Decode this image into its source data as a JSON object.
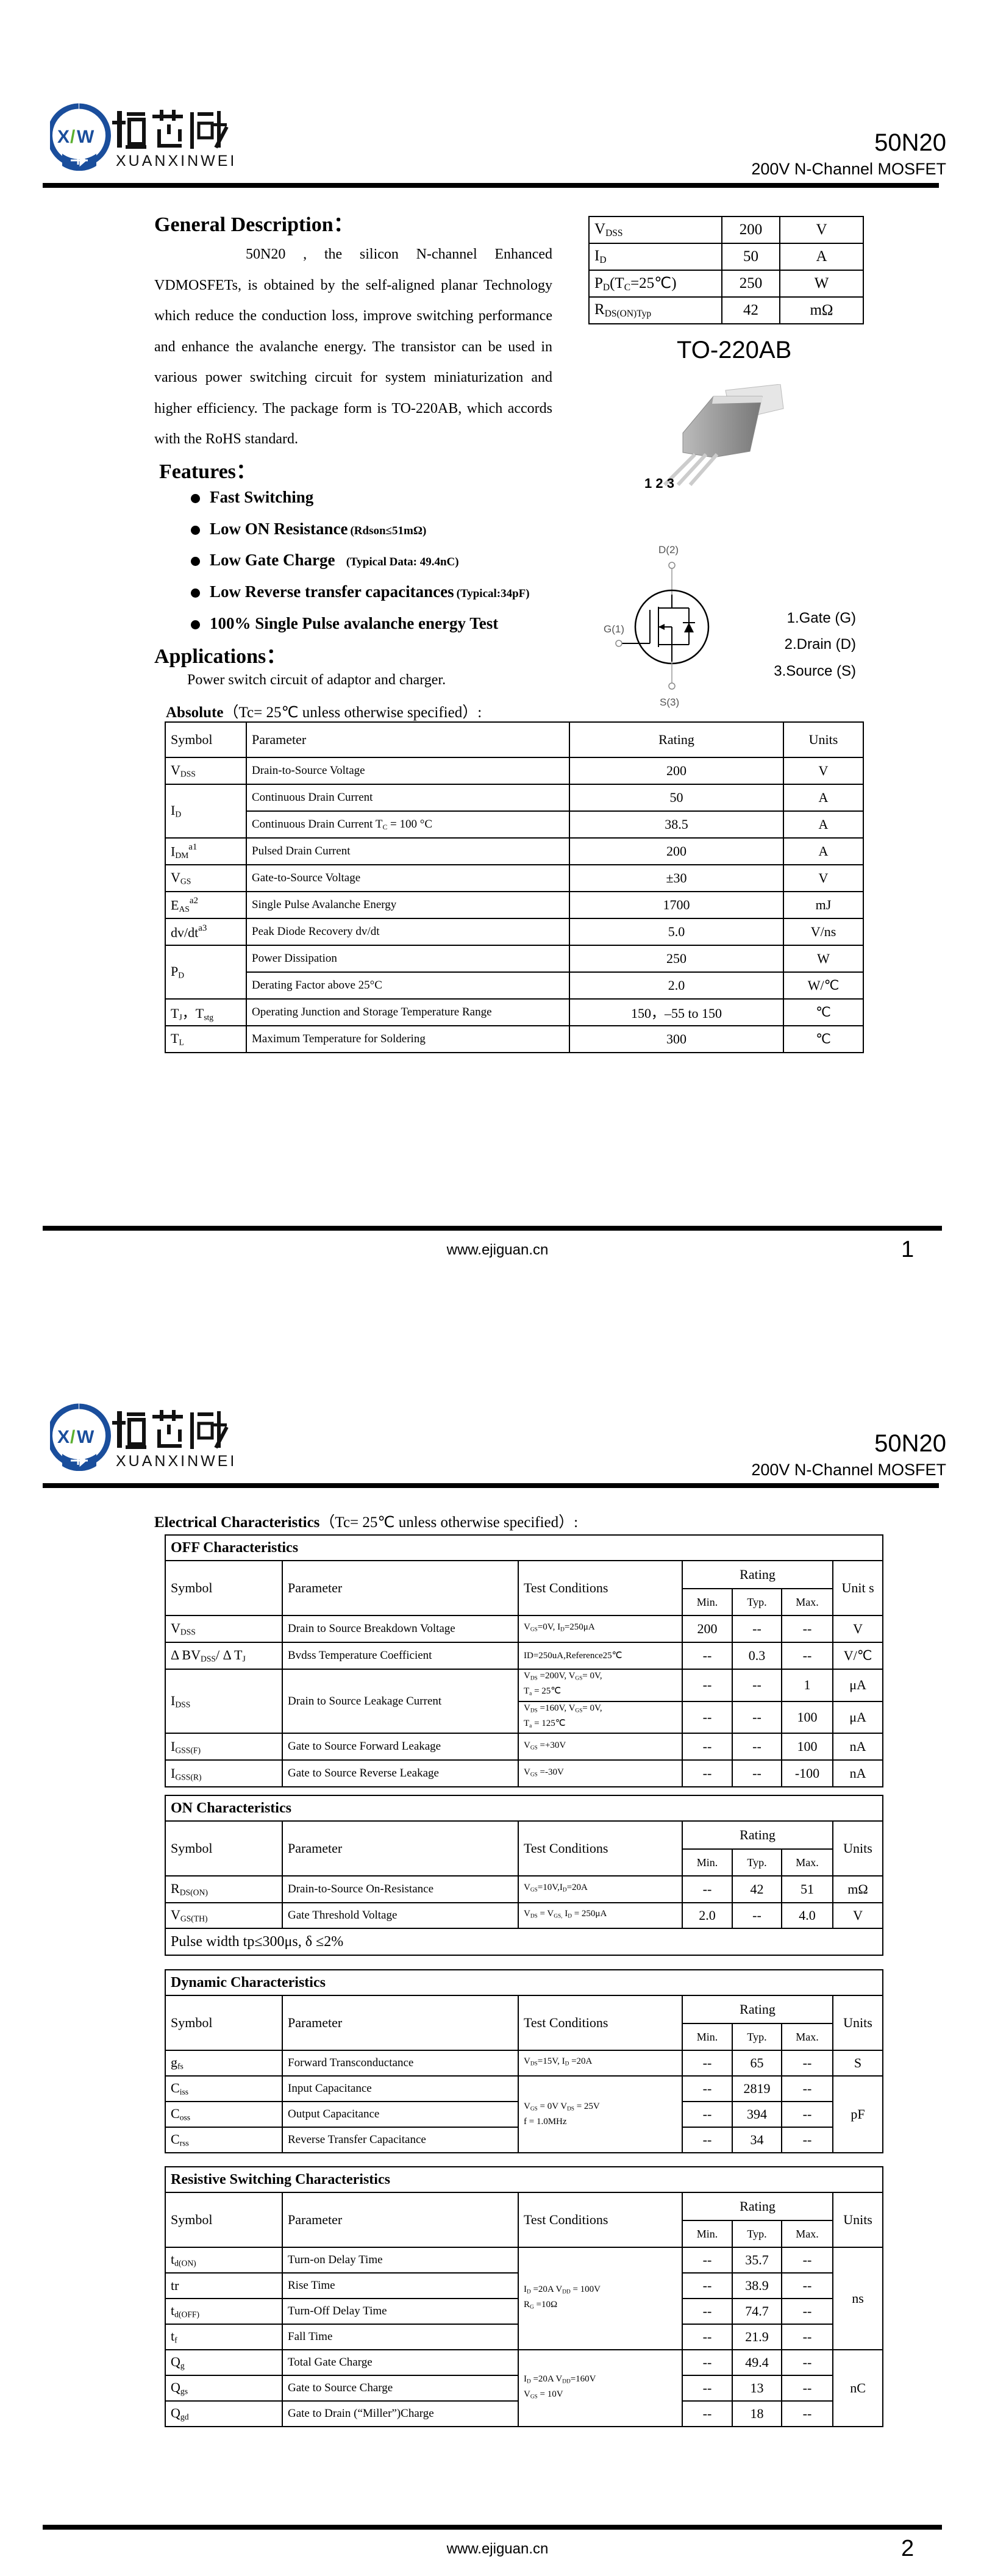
{
  "header": {
    "logo_text": "烜芯微",
    "logo_pinyin": "XUANXINWEI",
    "logo_mark": "XW",
    "part": "50N20",
    "subtitle": "200V N-Channel MOSFET",
    "brand_color": "#1a4e9c",
    "logo_accent": "#5bb030"
  },
  "page1": {
    "general_heading": "General Description：",
    "general_text": "50N20 , the silicon N-channel Enhanced VDMOSFETs, is obtained by the self-aligned planar Technology which reduce the conduction loss, improve switching performance and enhance the avalanche energy. The transistor can be used in various power switching circuit for system miniaturization and higher efficiency. The package form is TO-220AB, which accords with the RoHS standard.",
    "summary": [
      [
        [
          "V",
          {
            "sub": "DSS"
          }
        ],
        "200",
        "V"
      ],
      [
        [
          "I",
          {
            "sub": "D"
          }
        ],
        "50",
        "A"
      ],
      [
        [
          "P",
          {
            "sub": "D"
          },
          "(T",
          {
            "sub": "C"
          },
          "=25℃)"
        ],
        "250",
        "W"
      ],
      [
        [
          "R",
          {
            "sub": "DS(ON)Typ"
          }
        ],
        "42",
        "mΩ"
      ]
    ],
    "package": "TO-220AB",
    "pin_numbers": "1 2 3",
    "features_heading": "Features：",
    "features": [
      {
        "main": "Fast Switching",
        "note": ""
      },
      {
        "main": "Low ON Resistance",
        "note": "(Rdson≤51mΩ)"
      },
      {
        "main": "Low Gate Charge",
        "note": "   (Typical Data: 49.4nC)"
      },
      {
        "main": "Low Reverse transfer capacitances",
        "note": "(Typical:34pF)"
      },
      {
        "main": "100% Single Pulse avalanche energy Test",
        "note": ""
      }
    ],
    "applications_heading": "Applications：",
    "applications_text": "Power switch circuit of adaptor and charger.",
    "schematic": {
      "drain": "D(2)",
      "gate": "G(1)",
      "source": "S(3)"
    },
    "pins": [
      "1.Gate (G)",
      "2.Drain (D)",
      "3.Source (S)"
    ],
    "absolute_heading": "Absolute",
    "absolute_condition": "（Tc= 25℃  unless otherwise specified）:",
    "absolute_headers": [
      "Symbol",
      "Parameter",
      "Rating",
      "Units"
    ],
    "absolute_rows": [
      [
        [
          "V",
          {
            "sub": "DSS"
          }
        ],
        "Drain-to-Source Voltage",
        "200",
        "V"
      ],
      [
        {
          "v": [
            "I",
            {
              "sub": "D"
            }
          ],
          "rs": 2
        },
        "Continuous Drain Current",
        "50",
        "A"
      ],
      [
        [
          "Continuous Drain Current T",
          {
            "sub": "C"
          },
          " = 100 °C"
        ],
        "38.5",
        "A"
      ],
      [
        [
          "I",
          {
            "sub": "DM"
          },
          {
            "sup": "a1"
          }
        ],
        "Pulsed Drain Current",
        "200",
        "A"
      ],
      [
        [
          "V",
          {
            "sub": "GS"
          }
        ],
        "Gate-to-Source Voltage",
        "±30",
        "V"
      ],
      [
        [
          "E",
          {
            "sub": "AS"
          },
          {
            "sup": "a2"
          }
        ],
        "Single Pulse Avalanche Energy",
        "1700",
        "mJ"
      ],
      [
        [
          "dv/dt",
          {
            "sup": "a3"
          }
        ],
        "Peak Diode Recovery dv/dt",
        "5.0",
        "V/ns"
      ],
      [
        {
          "v": [
            "P",
            {
              "sub": "D"
            }
          ],
          "rs": 2
        },
        "Power Dissipation",
        "250",
        "W"
      ],
      [
        "Derating Factor above 25°C",
        "2.0",
        "W/℃"
      ],
      [
        [
          "T",
          {
            "sub": "J"
          },
          "，T",
          {
            "sub": "stg"
          }
        ],
        "Operating Junction and Storage Temperature Range",
        "150，–55 to 150",
        "℃"
      ],
      [
        [
          "T",
          {
            "sub": "L"
          }
        ],
        "Maximum Temperature for Soldering",
        "300",
        "℃"
      ]
    ],
    "footer_url": "www.ejiguan.cn",
    "page_number": "1"
  },
  "page2": {
    "elec_heading": "Electrical Characteristics",
    "elec_condition": "（Tc= 25℃  unless otherwise specified）:",
    "headers": {
      "symbol": "Symbol",
      "parameter": "Parameter",
      "test": "Test Conditions",
      "rating": "Rating",
      "min": "Min.",
      "typ": "Typ.",
      "max": "Max.",
      "units": "Units",
      "unit_off": "Unit s"
    },
    "off": {
      "title": "OFF Characteristics",
      "rows": [
        [
          [
            "V",
            {
              "sub": "DSS"
            }
          ],
          "Drain to Source Breakdown Voltage",
          [
            "V",
            {
              "sub": "GS"
            },
            "=0V, I",
            {
              "sub": "D"
            },
            "=250μA"
          ],
          "200",
          "--",
          "--",
          "V"
        ],
        [
          [
            "Δ BV",
            {
              "sub": "DSS"
            },
            "/ Δ T",
            {
              "sub": "J"
            }
          ],
          "Bvdss Temperature Coefficient",
          "ID=250uA,Reference25℃",
          "--",
          "0.3",
          "--",
          "V/℃"
        ],
        [
          {
            "v": [
              "I",
              {
                "sub": "DSS"
              }
            ],
            "rs": 2
          },
          {
            "v": "Drain to Source Leakage Current",
            "rs": 2
          },
          [
            "V",
            {
              "sub": "DS"
            },
            " =200V, V",
            {
              "sub": "GS"
            },
            "= 0V,\nT",
            {
              "sub": "a"
            },
            " = 25℃"
          ],
          "--",
          "--",
          "1",
          "μA"
        ],
        [
          [
            "V",
            {
              "sub": "DS"
            },
            " =160V, V",
            {
              "sub": "GS"
            },
            "= 0V,\nT",
            {
              "sub": "a"
            },
            " = 125℃"
          ],
          "--",
          "--",
          "100",
          "μA"
        ],
        [
          [
            "I",
            {
              "sub": "GSS(F)"
            }
          ],
          "Gate to Source Forward Leakage",
          [
            "V",
            {
              "sub": "GS"
            },
            " =+30V"
          ],
          "--",
          "--",
          "100",
          "nA"
        ],
        [
          [
            "I",
            {
              "sub": "GSS(R)"
            }
          ],
          "Gate to Source Reverse Leakage",
          [
            "V",
            {
              "sub": "GS"
            },
            " =-30V"
          ],
          "--",
          "--",
          "-100",
          "nA"
        ]
      ]
    },
    "on": {
      "title": "ON Characteristics",
      "rows": [
        [
          [
            "R",
            {
              "sub": "DS(ON)"
            }
          ],
          "Drain-to-Source On-Resistance",
          [
            "V",
            {
              "sub": "GS"
            },
            "=10V,I",
            {
              "sub": "D"
            },
            "=20A"
          ],
          "--",
          "42",
          "51",
          "mΩ"
        ],
        [
          [
            "V",
            {
              "sub": "GS(TH)"
            }
          ],
          "Gate Threshold Voltage",
          [
            "V",
            {
              "sub": "DS"
            },
            " = V",
            {
              "sub": "GS,"
            },
            " I",
            {
              "sub": "D"
            },
            " = 250μA"
          ],
          "2.0",
          "--",
          "4.0",
          "V"
        ]
      ],
      "note": "Pulse width tp≤300μs, δ ≤2%"
    },
    "dynamic": {
      "title": "Dynamic Characteristics",
      "rows": [
        [
          [
            "g",
            {
              "sub": "fs"
            }
          ],
          "Forward Transconductance",
          [
            "V",
            {
              "sub": "DS"
            },
            "=15V, I",
            {
              "sub": "D"
            },
            " =20A"
          ],
          "--",
          "65",
          "--",
          "S"
        ],
        [
          [
            "C",
            {
              "sub": "iss"
            }
          ],
          "Input Capacitance",
          {
            "v": [
              "V",
              {
                "sub": "GS"
              },
              " = 0V V",
              {
                "sub": "DS"
              },
              " = 25V\nf = 1.0MHz"
            ],
            "rs": 3
          },
          "--",
          "2819",
          "--",
          {
            "v": "pF",
            "rs": 3
          }
        ],
        [
          [
            "C",
            {
              "sub": "oss"
            }
          ],
          "Output Capacitance",
          "--",
          "394",
          "--"
        ],
        [
          [
            "C",
            {
              "sub": "rss"
            }
          ],
          "Reverse Transfer Capacitance",
          "--",
          "34",
          "--"
        ]
      ]
    },
    "switching": {
      "title": "Resistive Switching Characteristics",
      "rows": [
        [
          [
            "t",
            {
              "sub": "d(ON)"
            }
          ],
          "Turn-on Delay Time",
          {
            "v": [
              "I",
              {
                "sub": "D"
              },
              " =20A    V",
              {
                "sub": "DD"
              },
              " = 100V\nR",
              {
                "sub": "G"
              },
              " =10Ω"
            ],
            "rs": 4
          },
          "--",
          "35.7",
          "--",
          {
            "v": "ns",
            "rs": 4
          }
        ],
        [
          "tr",
          "Rise Time",
          "--",
          "38.9",
          "--"
        ],
        [
          [
            "t",
            {
              "sub": "d(OFF)"
            }
          ],
          "Turn-Off Delay Time",
          "--",
          "74.7",
          "--"
        ],
        [
          [
            "t",
            {
              "sub": "f"
            }
          ],
          "Fall Time",
          "--",
          "21.9",
          "--"
        ],
        [
          [
            "Q",
            {
              "sub": "g"
            }
          ],
          "Total Gate Charge",
          {
            "v": [
              "I",
              {
                "sub": "D"
              },
              " =20A    V",
              {
                "sub": "DD"
              },
              "=160V\nV",
              {
                "sub": "GS"
              },
              " = 10V"
            ],
            "rs": 3
          },
          "--",
          "49.4",
          "--",
          {
            "v": "nC",
            "rs": 3
          }
        ],
        [
          [
            "Q",
            {
              "sub": "gs"
            }
          ],
          "Gate to Source Charge",
          "--",
          "13",
          "--"
        ],
        [
          [
            "Q",
            {
              "sub": "gd"
            }
          ],
          "Gate to Drain (“Miller”)Charge",
          "--",
          "18",
          "--"
        ]
      ]
    },
    "footer_url": "www.ejiguan.cn",
    "page_number": "2"
  }
}
